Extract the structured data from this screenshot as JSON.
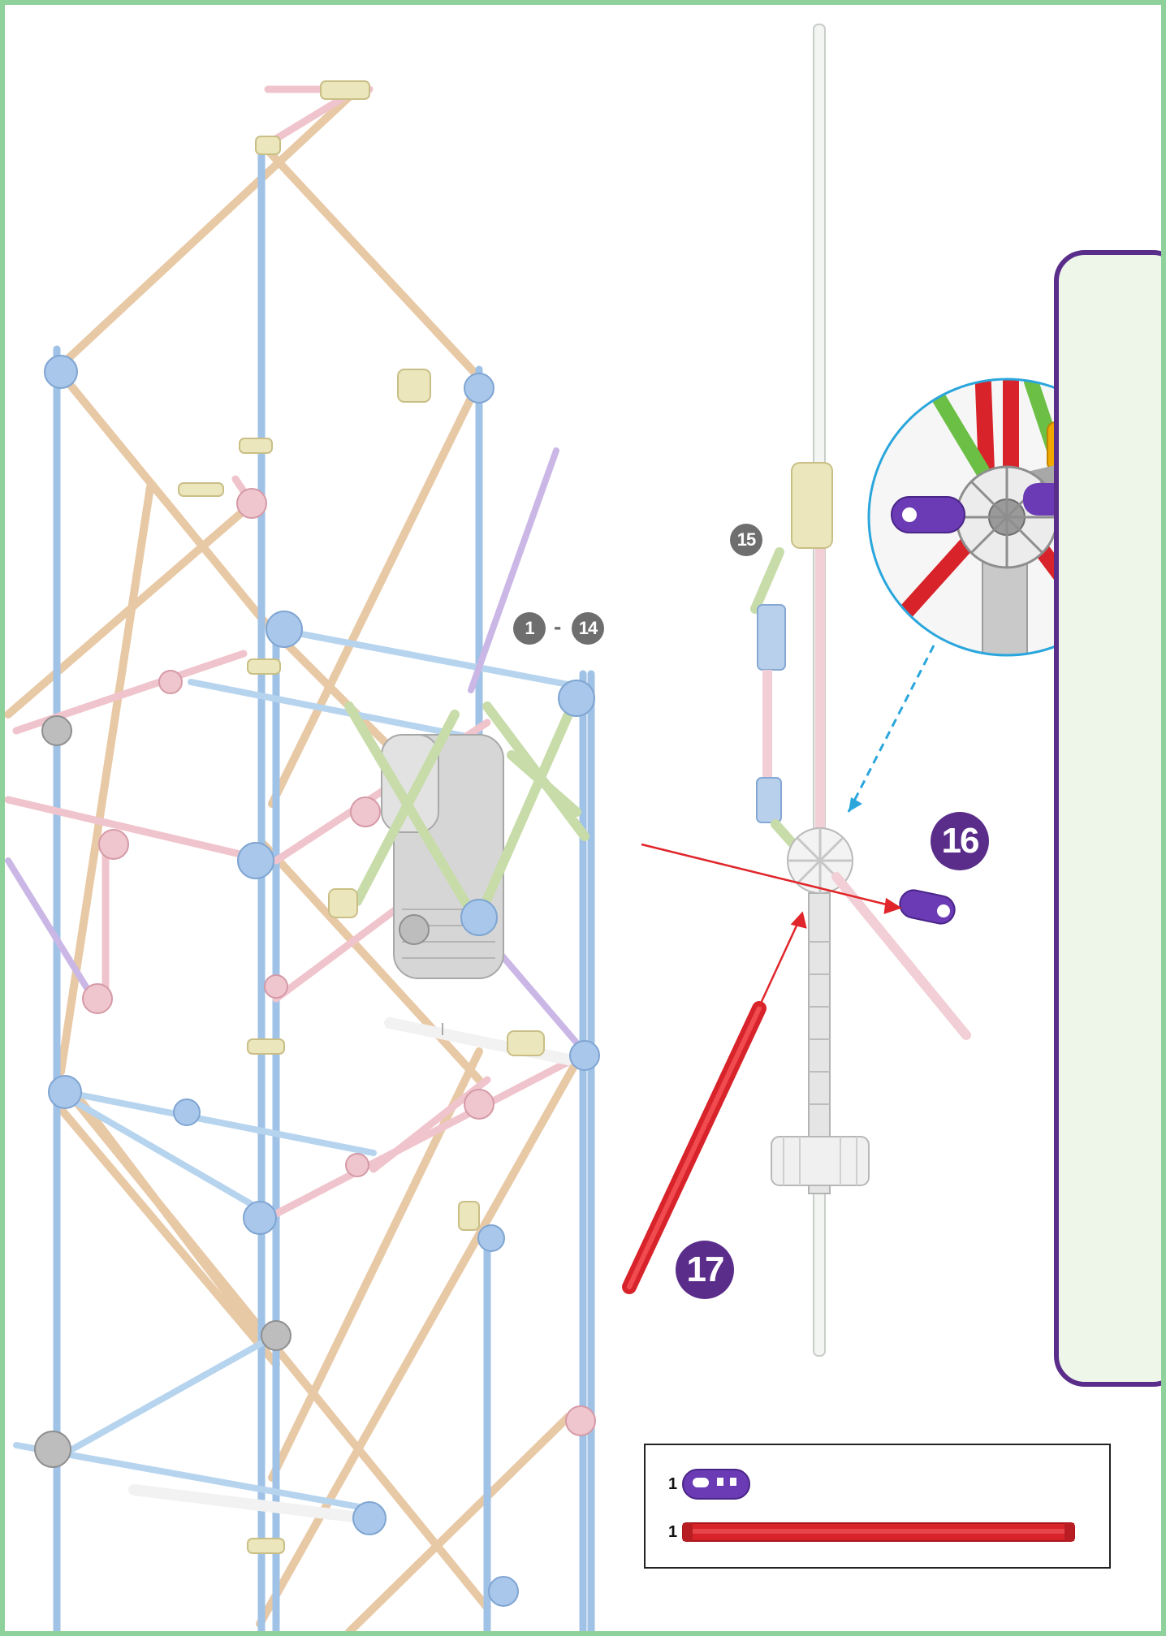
{
  "steps": {
    "previous_steps_start": "1",
    "previous_steps_separator": "-",
    "previous_steps_end": "14",
    "previous_step_single": "15",
    "current_step_a": "16",
    "current_step_b": "17"
  },
  "parts_list": [
    {
      "quantity": "1",
      "part": "purple-clip-icon",
      "color": "#6a3bb5"
    },
    {
      "quantity": "1",
      "part": "red-rod-icon",
      "color": "#d8232a"
    }
  ],
  "colors": {
    "border": "#8fd19a",
    "step_badge": "#5a2d8a",
    "previous_step_badge": "#6e6e6e",
    "zoom_circle_outline": "#2aa6dc",
    "arrow": "#e0262b",
    "inset_frame": "#5a2d8a"
  }
}
